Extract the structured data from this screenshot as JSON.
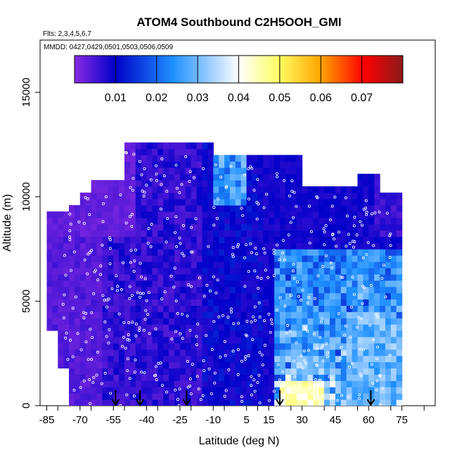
{
  "chart_data": {
    "type": "heatmap",
    "title": "ATOM4 Southbound C2H5OOH_GMI",
    "flights_note": "Flts: 2,3,4,5,6,7",
    "dates_note": "MMDD: 0427,0429,0501,0503,0506,0509",
    "xlabel": "Latitude (deg N)",
    "ylabel": "Altitude (m)",
    "xlim": [
      -88,
      90
    ],
    "ylim": [
      0,
      17500
    ],
    "x_ticks": [
      -85,
      -70,
      -55,
      -40,
      -25,
      -10,
      5,
      15,
      30,
      45,
      60,
      75
    ],
    "x_ticks_labeled": [
      -85,
      -70,
      -55,
      -40,
      -25,
      -10,
      5,
      15,
      30,
      45,
      60,
      75
    ],
    "x_ticks_unlabeled": [
      -80,
      -65,
      -50,
      -35,
      -20,
      -5,
      10,
      25,
      40,
      55,
      70,
      85
    ],
    "y_ticks": [
      0,
      5000,
      10000,
      15000
    ],
    "colorbar": {
      "range": [
        0,
        0.08
      ],
      "ticks": [
        0.01,
        0.02,
        0.03,
        0.04,
        0.05,
        0.06,
        0.07
      ],
      "colors": [
        "#8a2be2",
        "#0000c8",
        "#1e90ff",
        "#ffffff",
        "#ffff66",
        "#ffa500",
        "#ff0000",
        "#8b1a1a"
      ]
    },
    "profile_arrows_lat": [
      -54,
      -43,
      -22,
      20,
      61
    ],
    "field": {
      "lat_range": [
        -85,
        73
      ],
      "alt_range": [
        0,
        12500
      ],
      "description_points": [
        {
          "lat": -80,
          "alt": 5000,
          "value": 0.004
        },
        {
          "lat": -60,
          "alt": 2000,
          "value": 0.008
        },
        {
          "lat": -40,
          "alt": 6000,
          "value": 0.006
        },
        {
          "lat": -20,
          "alt": 3000,
          "value": 0.011
        },
        {
          "lat": 0,
          "alt": 11000,
          "value": 0.028
        },
        {
          "lat": 25,
          "alt": 500,
          "value": 0.045
        },
        {
          "lat": 35,
          "alt": 2500,
          "value": 0.034
        },
        {
          "lat": 55,
          "alt": 2000,
          "value": 0.032
        },
        {
          "lat": 68,
          "alt": 3000,
          "value": 0.025
        }
      ]
    }
  }
}
